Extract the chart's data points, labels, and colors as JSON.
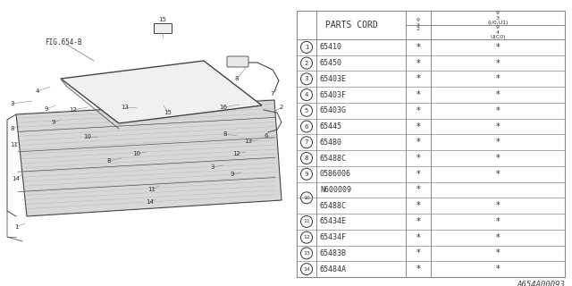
{
  "bg_color": "#ffffff",
  "tc": "#333333",
  "lc": "#888888",
  "rows": [
    {
      "num": "1",
      "part": "65410",
      "c1": "*",
      "c2": "*",
      "circle": true,
      "span": false
    },
    {
      "num": "2",
      "part": "65450",
      "c1": "*",
      "c2": "*",
      "circle": true,
      "span": false
    },
    {
      "num": "3",
      "part": "65403E",
      "c1": "*",
      "c2": "*",
      "circle": true,
      "span": false
    },
    {
      "num": "4",
      "part": "65403F",
      "c1": "*",
      "c2": "*",
      "circle": true,
      "span": false
    },
    {
      "num": "5",
      "part": "65403G",
      "c1": "*",
      "c2": "*",
      "circle": true,
      "span": false
    },
    {
      "num": "6",
      "part": "65445",
      "c1": "*",
      "c2": "*",
      "circle": true,
      "span": false
    },
    {
      "num": "7",
      "part": "65480",
      "c1": "*",
      "c2": "*",
      "circle": true,
      "span": false
    },
    {
      "num": "8",
      "part": "65488C",
      "c1": "*",
      "c2": "*",
      "circle": true,
      "span": false
    },
    {
      "num": "9",
      "part": "0586006",
      "c1": "*",
      "c2": "*",
      "circle": true,
      "span": false
    },
    {
      "num": "10",
      "part": "N600009",
      "c1": "*",
      "c2": "",
      "circle": true,
      "span": true
    },
    {
      "num": "",
      "part": "65488C",
      "c1": "*",
      "c2": "*",
      "circle": false,
      "span": false
    },
    {
      "num": "11",
      "part": "65434E",
      "c1": "*",
      "c2": "*",
      "circle": true,
      "span": false
    },
    {
      "num": "12",
      "part": "65434F",
      "c1": "*",
      "c2": "*",
      "circle": true,
      "span": false
    },
    {
      "num": "13",
      "part": "65483B",
      "c1": "*",
      "c2": "*",
      "circle": true,
      "span": false
    },
    {
      "num": "14",
      "part": "65484A",
      "c1": "*",
      "c2": "*",
      "circle": true,
      "span": false
    }
  ],
  "footer": "A654A00093"
}
